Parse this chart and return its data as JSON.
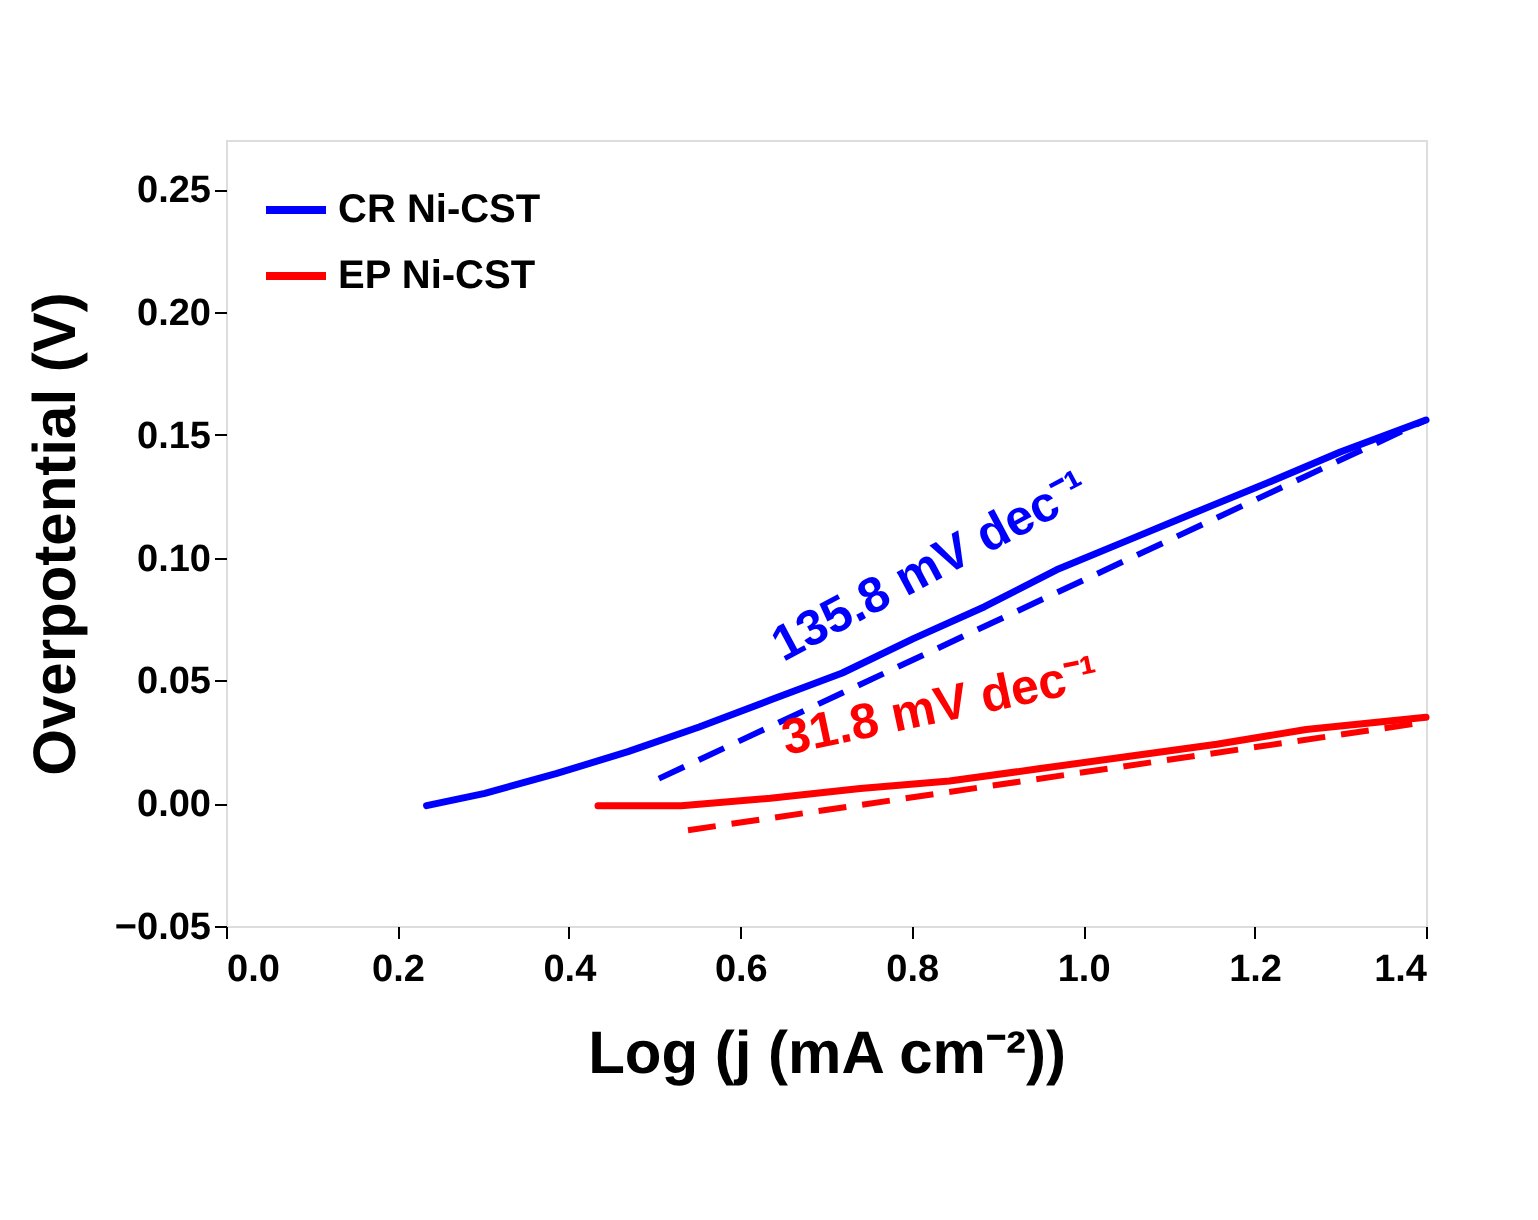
{
  "chart_data": {
    "type": "line",
    "xlabel": "Log (j (mA cm⁻²))",
    "ylabel": "Overpotential (V)",
    "xlim": [
      0.0,
      1.4
    ],
    "xticks": [
      {
        "value": 0.0,
        "label": "0.0"
      },
      0.2,
      0.4,
      0.6,
      0.8,
      {
        "value": 1.0,
        "label": "1.0"
      },
      1.2,
      1.4
    ],
    "ylim": [
      -0.05,
      0.27
    ],
    "yticks": [
      -0.05,
      {
        "value": 0.0,
        "label": "0.00"
      },
      0.05,
      {
        "value": 0.1,
        "label": "0.10"
      },
      0.15,
      {
        "value": 0.2,
        "label": "0.20"
      },
      0.25
    ],
    "grid": false,
    "legend": "top left",
    "marker": "none",
    "series": [
      {
        "name": "CR Ni-CST",
        "color": "#0000ff",
        "line_style": "solid",
        "x": [
          0.234,
          0.302,
          0.385,
          0.469,
          0.552,
          0.635,
          0.719,
          0.802,
          0.885,
          0.969,
          1.052,
          1.135,
          1.219,
          1.3,
          1.4
        ],
        "values": [
          -0.001,
          0.004,
          0.012,
          0.021,
          0.031,
          0.042,
          0.053,
          0.067,
          0.08,
          0.095,
          0.107,
          0.119,
          0.131,
          0.143,
          0.156
        ]
      },
      {
        "name": "EP Ni-CST",
        "color": "#ff0000",
        "line_style": "solid",
        "x": [
          0.434,
          0.531,
          0.635,
          0.74,
          0.844,
          0.948,
          1.052,
          1.156,
          1.26,
          1.4
        ],
        "values": [
          -0.001,
          -0.001,
          0.002,
          0.006,
          0.009,
          0.014,
          0.019,
          0.024,
          0.03,
          0.035
        ]
      },
      {
        "color": "#0000ff",
        "line_style": "dashed",
        "x": [
          0.505,
          1.4
        ],
        "values": [
          0.01,
          0.156
        ]
      },
      {
        "color": "#ff0000",
        "line_style": "dashed",
        "x": [
          0.539,
          1.4
        ],
        "values": [
          -0.011,
          0.033
        ]
      }
    ],
    "annotations": [
      "135.8 mV dec⁻¹",
      "31.8 mV dec⁻¹"
    ]
  }
}
